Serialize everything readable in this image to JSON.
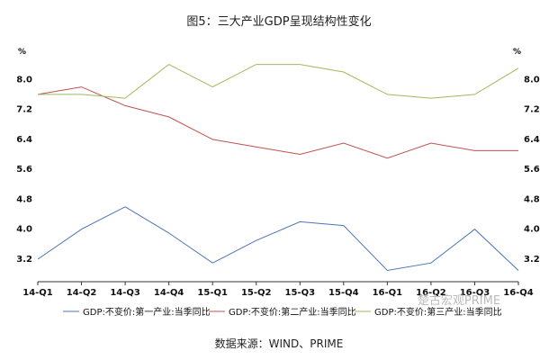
{
  "chart_data": {
    "type": "line",
    "title": "图5：三大产业GDP呈现结构性变化",
    "y_unit_left": "%",
    "y_unit_right": "%",
    "categories": [
      "14-Q1",
      "14-Q2",
      "14-Q3",
      "14-Q4",
      "15-Q1",
      "15-Q2",
      "15-Q3",
      "15-Q4",
      "16-Q1",
      "16-Q2",
      "16-Q3",
      "16-Q4"
    ],
    "y_ticks": [
      "3.2",
      "4.0",
      "4.8",
      "5.6",
      "6.4",
      "7.2",
      "8.0"
    ],
    "ylim": [
      2.6,
      8.8
    ],
    "grid": false,
    "legend_position": "bottom",
    "series": [
      {
        "name": "GDP:不变价:第一产业:当季同比",
        "color": "#4e74b8",
        "values": [
          3.2,
          4.0,
          4.6,
          3.9,
          3.1,
          3.7,
          4.2,
          4.1,
          2.9,
          3.1,
          4.0,
          2.9
        ]
      },
      {
        "name": "GDP:不变价:第二产业:当季同比",
        "color": "#c0504d",
        "values": [
          7.6,
          7.8,
          7.3,
          7.0,
          6.4,
          6.2,
          6.0,
          6.3,
          5.9,
          6.3,
          6.1,
          6.1
        ]
      },
      {
        "name": "GDP:不变价:第三产业:当季同比",
        "color": "#9bbb59",
        "values": [
          7.6,
          7.6,
          7.5,
          8.4,
          7.8,
          8.4,
          8.4,
          8.2,
          7.6,
          7.5,
          7.6,
          8.3
        ]
      }
    ],
    "source": "数据来源：WIND、PRIME",
    "watermark": "楚古宏观PRIME"
  }
}
